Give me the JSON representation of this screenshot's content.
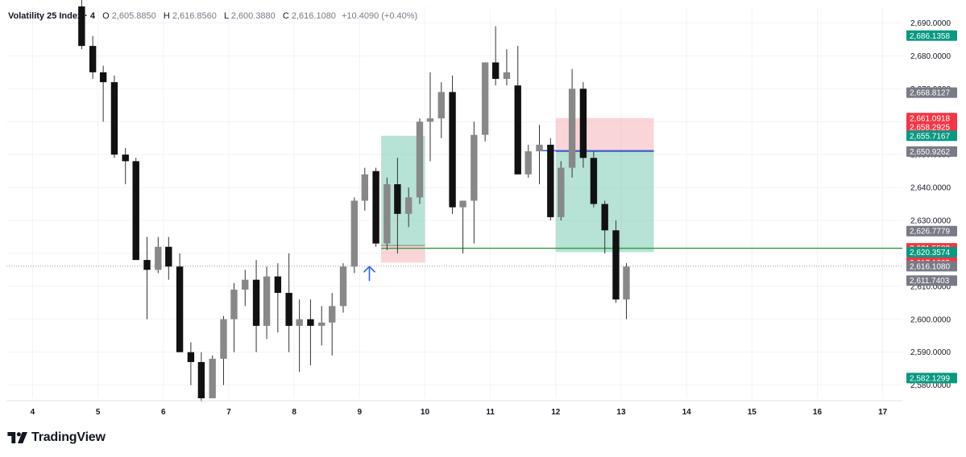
{
  "legend": {
    "symbol": "Volatility 25 Index · 4",
    "o_label": "O",
    "o_value": "2,605.8850",
    "h_label": "H",
    "h_value": "2,616.8560",
    "l_label": "L",
    "l_value": "2,600.3880",
    "c_label": "C",
    "c_value": "2,616.1080",
    "change": "+10.4090 (+0.40%)"
  },
  "brand": {
    "name": "TradingView",
    "icon": "tradingview-logo-icon"
  },
  "colors": {
    "bull": "#888888",
    "bear": "#111111",
    "wick": "#333333",
    "green_zone": "#5fbfa5",
    "red_zone": "#f3a1a9",
    "green_tag": "#089981",
    "red_tag": "#f23645",
    "grey_tag": "#787b86",
    "horizontal_line": "#2e9b3c",
    "blue_line": "#2962ff",
    "arrow": "#2962ff"
  },
  "chart_data": {
    "type": "candlestick",
    "y_axis": {
      "min": 2576,
      "max": 2695,
      "ticks": [
        2580,
        2590,
        2600,
        2610,
        2620,
        2630,
        2640,
        2650,
        2660,
        2670,
        2680,
        2690
      ],
      "tick_labels": [
        "2,580.0000",
        "2,590.0000",
        "2,600.0000",
        "2,610.0000",
        "2,620.0000",
        "2,630.0000",
        "2,640.0000",
        "2,650.0000",
        "2,660.0000",
        "2,670.0000",
        "2,680.0000",
        "2,690.0000"
      ]
    },
    "x_axis": {
      "labels": [
        "4",
        "5",
        "6",
        "7",
        "8",
        "9",
        "10",
        "11",
        "12",
        "13",
        "14",
        "15",
        "16",
        "17"
      ],
      "values": [
        4,
        5,
        6,
        7,
        8,
        9,
        10,
        11,
        12,
        13,
        14,
        15,
        16,
        17
      ],
      "min": 3.6,
      "max": 17.3
    },
    "candles": [
      {
        "t": 4.75,
        "o": 2695,
        "h": 2699,
        "l": 2682,
        "c": 2683
      },
      {
        "t": 4.92,
        "o": 2683,
        "h": 2686,
        "l": 2673,
        "c": 2675
      },
      {
        "t": 5.08,
        "o": 2675,
        "h": 2677,
        "l": 2660,
        "c": 2672
      },
      {
        "t": 5.25,
        "o": 2672,
        "h": 2674,
        "l": 2649,
        "c": 2650
      },
      {
        "t": 5.42,
        "o": 2650,
        "h": 2652,
        "l": 2641,
        "c": 2648
      },
      {
        "t": 5.58,
        "o": 2648,
        "h": 2649,
        "l": 2618,
        "c": 2618
      },
      {
        "t": 5.75,
        "o": 2618,
        "h": 2625,
        "l": 2600,
        "c": 2615
      },
      {
        "t": 5.92,
        "o": 2615,
        "h": 2625,
        "l": 2614,
        "c": 2622
      },
      {
        "t": 6.08,
        "o": 2622,
        "h": 2625,
        "l": 2612,
        "c": 2616
      },
      {
        "t": 6.25,
        "o": 2616,
        "h": 2620,
        "l": 2590,
        "c": 2590
      },
      {
        "t": 6.42,
        "o": 2590,
        "h": 2593,
        "l": 2580,
        "c": 2587
      },
      {
        "t": 6.58,
        "o": 2587,
        "h": 2590,
        "l": 2575,
        "c": 2576
      },
      {
        "t": 6.75,
        "o": 2576,
        "h": 2589,
        "l": 2576,
        "c": 2588
      },
      {
        "t": 6.92,
        "o": 2588,
        "h": 2601,
        "l": 2580,
        "c": 2600
      },
      {
        "t": 7.08,
        "o": 2600,
        "h": 2611,
        "l": 2590,
        "c": 2609
      },
      {
        "t": 7.25,
        "o": 2609,
        "h": 2615,
        "l": 2604,
        "c": 2612
      },
      {
        "t": 7.42,
        "o": 2612,
        "h": 2618,
        "l": 2590,
        "c": 2598
      },
      {
        "t": 7.58,
        "o": 2598,
        "h": 2616,
        "l": 2594,
        "c": 2613
      },
      {
        "t": 7.75,
        "o": 2613,
        "h": 2617,
        "l": 2596,
        "c": 2608
      },
      {
        "t": 7.92,
        "o": 2608,
        "h": 2620,
        "l": 2590,
        "c": 2598
      },
      {
        "t": 8.08,
        "o": 2598,
        "h": 2606,
        "l": 2584,
        "c": 2600
      },
      {
        "t": 8.25,
        "o": 2600,
        "h": 2606,
        "l": 2586,
        "c": 2598
      },
      {
        "t": 8.42,
        "o": 2598,
        "h": 2604,
        "l": 2592,
        "c": 2599
      },
      {
        "t": 8.58,
        "o": 2599,
        "h": 2608,
        "l": 2589,
        "c": 2604
      },
      {
        "t": 8.75,
        "o": 2604,
        "h": 2617,
        "l": 2602,
        "c": 2616
      },
      {
        "t": 8.92,
        "o": 2616,
        "h": 2637,
        "l": 2614,
        "c": 2636
      },
      {
        "t": 9.08,
        "o": 2636,
        "h": 2646,
        "l": 2633,
        "c": 2644
      },
      {
        "t": 9.25,
        "o": 2645,
        "h": 2646,
        "l": 2622,
        "c": 2623
      },
      {
        "t": 9.42,
        "o": 2623,
        "h": 2643,
        "l": 2621,
        "c": 2641
      },
      {
        "t": 9.58,
        "o": 2641,
        "h": 2649,
        "l": 2620,
        "c": 2632
      },
      {
        "t": 9.75,
        "o": 2632,
        "h": 2640,
        "l": 2628,
        "c": 2637
      },
      {
        "t": 9.92,
        "o": 2637,
        "h": 2661,
        "l": 2635,
        "c": 2660
      },
      {
        "t": 10.08,
        "o": 2660,
        "h": 2675,
        "l": 2648,
        "c": 2661
      },
      {
        "t": 10.25,
        "o": 2661,
        "h": 2672,
        "l": 2655,
        "c": 2669
      },
      {
        "t": 10.42,
        "o": 2669,
        "h": 2674,
        "l": 2632,
        "c": 2634
      },
      {
        "t": 10.58,
        "o": 2634,
        "h": 2636,
        "l": 2620,
        "c": 2636
      },
      {
        "t": 10.75,
        "o": 2636,
        "h": 2660,
        "l": 2623,
        "c": 2656
      },
      {
        "t": 10.92,
        "o": 2656,
        "h": 2678,
        "l": 2654,
        "c": 2678
      },
      {
        "t": 11.08,
        "o": 2678,
        "h": 2689,
        "l": 2671,
        "c": 2673
      },
      {
        "t": 11.25,
        "o": 2673,
        "h": 2682,
        "l": 2671,
        "c": 2675
      },
      {
        "t": 11.42,
        "o": 2671,
        "h": 2683,
        "l": 2644,
        "c": 2644
      },
      {
        "t": 11.58,
        "o": 2644,
        "h": 2653,
        "l": 2643,
        "c": 2651
      },
      {
        "t": 11.75,
        "o": 2651,
        "h": 2659,
        "l": 2641,
        "c": 2653
      },
      {
        "t": 11.92,
        "o": 2653,
        "h": 2655,
        "l": 2630,
        "c": 2631
      },
      {
        "t": 12.08,
        "o": 2631,
        "h": 2648,
        "l": 2630,
        "c": 2646
      },
      {
        "t": 12.25,
        "o": 2646,
        "h": 2676,
        "l": 2643,
        "c": 2670
      },
      {
        "t": 12.42,
        "o": 2670,
        "h": 2672,
        "l": 2646,
        "c": 2649
      },
      {
        "t": 12.58,
        "o": 2649,
        "h": 2651,
        "l": 2634,
        "c": 2635
      },
      {
        "t": 12.75,
        "o": 2635,
        "h": 2636,
        "l": 2620,
        "c": 2627
      },
      {
        "t": 12.92,
        "o": 2627,
        "h": 2630,
        "l": 2605,
        "c": 2606
      },
      {
        "t": 13.08,
        "o": 2606,
        "h": 2617,
        "l": 2600,
        "c": 2616
      }
    ],
    "positions": [
      {
        "kind": "long",
        "t_start": 9.33,
        "t_end": 10.0,
        "entry": 2622.4,
        "stop": 2617.2,
        "target": 2655.7
      },
      {
        "kind": "short",
        "t_start": 12.0,
        "t_end": 13.5,
        "entry": 2650.9,
        "stop": 2661.1,
        "target": 2620.4
      }
    ],
    "lines": [
      {
        "name": "green-level",
        "price": 2621.5532,
        "t_start": 9.33,
        "t_end": 17.3
      },
      {
        "name": "blue-level",
        "price": 2651.2,
        "t_start": 11.7,
        "t_end": 13.5
      },
      {
        "name": "last-price-dotted",
        "price": 2616.108,
        "t_start": 3.6,
        "t_end": 17.3
      }
    ],
    "arrow": {
      "t": 9.15,
      "price": 2616.0
    },
    "price_tags": [
      {
        "label": "2,686.1358",
        "price": 2686.1358,
        "kind": "green"
      },
      {
        "label": "2,668.8127",
        "price": 2668.8127,
        "kind": "grey"
      },
      {
        "label": "2,661.0918",
        "price": 2661.0918,
        "kind": "red"
      },
      {
        "label": "2,658.2925",
        "price": 2658.2925,
        "kind": "red"
      },
      {
        "label": "2,655.7167",
        "price": 2655.7167,
        "kind": "green"
      },
      {
        "label": "2,650.9262",
        "price": 2650.9262,
        "kind": "grey"
      },
      {
        "label": "2,626.7779",
        "price": 2626.7779,
        "kind": "grey"
      },
      {
        "label": "2,621.5532",
        "price": 2621.5532,
        "kind": "red"
      },
      {
        "label": "2,620.3574",
        "price": 2620.3574,
        "kind": "green"
      },
      {
        "label": "2,617.1805",
        "price": 2617.1805,
        "kind": "red"
      },
      {
        "label": "2,616.1080",
        "price": 2616.108,
        "kind": "grey"
      },
      {
        "label": "2,611.7403",
        "price": 2611.7403,
        "kind": "grey"
      },
      {
        "label": "2,582.1299",
        "price": 2582.1299,
        "kind": "green"
      }
    ]
  }
}
